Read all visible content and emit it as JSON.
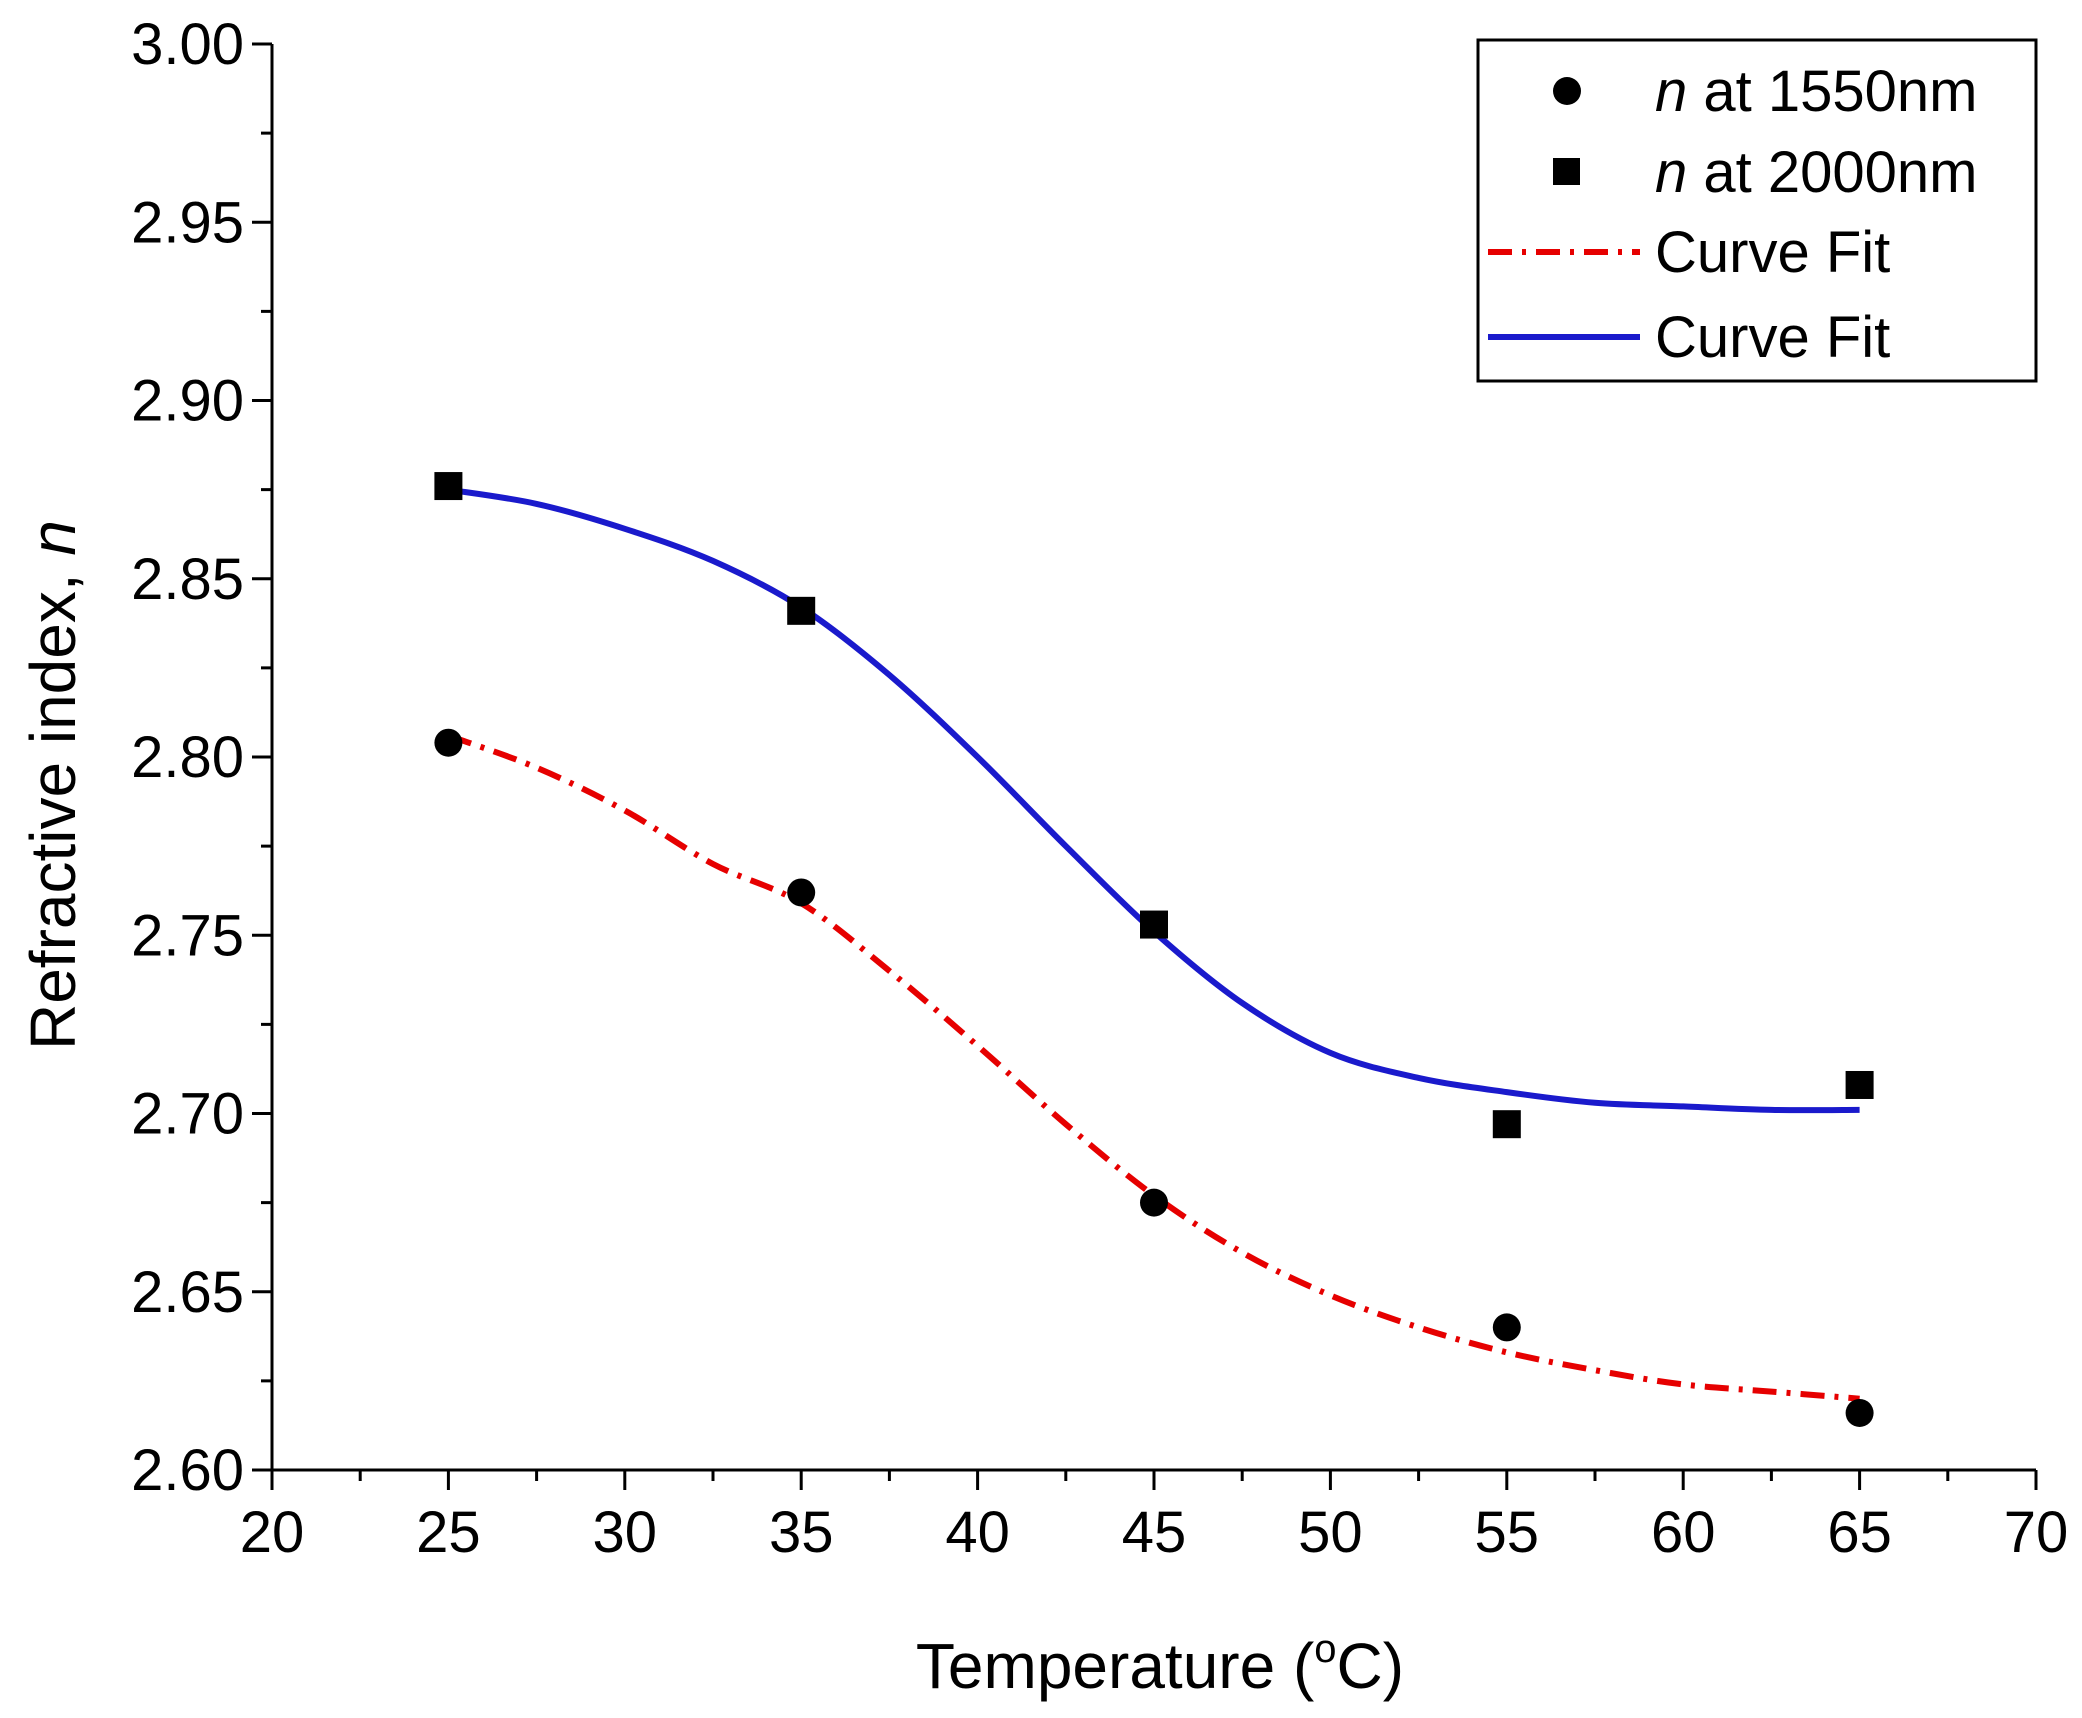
{
  "chart_data": {
    "type": "scatter",
    "title": "",
    "xlabel": "Temperature (°C)",
    "xlabel_parts": {
      "main": "Temperature (",
      "sup": "o",
      "unit": "C)"
    },
    "ylabel": "Refractive index, n",
    "ylabel_parts": {
      "main": "Refractive index, ",
      "var": "n"
    },
    "xlim": [
      20,
      70
    ],
    "ylim": [
      2.6,
      3.0
    ],
    "x_ticks": [
      "20",
      "25",
      "30",
      "35",
      "40",
      "45",
      "50",
      "55",
      "60",
      "65",
      "70"
    ],
    "y_ticks": [
      "2.60",
      "2.65",
      "2.70",
      "2.75",
      "2.80",
      "2.85",
      "2.90",
      "2.95",
      "3.00"
    ],
    "grid": false,
    "legend_position": "top-right",
    "series": [
      {
        "name": "n at 1550nm",
        "label_var": "n",
        "label_rest": " at 1550nm",
        "marker": "circle",
        "color": "#000000",
        "x": [
          25,
          35,
          45,
          55,
          65
        ],
        "y": [
          2.804,
          2.762,
          2.675,
          2.64,
          2.616
        ]
      },
      {
        "name": "n at 2000nm",
        "label_var": "n",
        "label_rest": " at 2000nm",
        "marker": "square",
        "color": "#000000",
        "x": [
          25,
          35,
          45,
          55,
          65
        ],
        "y": [
          2.876,
          2.841,
          2.753,
          2.697,
          2.708
        ]
      }
    ],
    "fits": [
      {
        "name": "Curve Fit",
        "fits_series": "n at 1550nm",
        "style": "dash-dot",
        "color": "#e60000",
        "x": [
          25,
          27.5,
          30,
          32.5,
          35,
          37.5,
          40,
          42.5,
          45,
          47.5,
          50,
          52.5,
          55,
          57.5,
          60,
          62.5,
          65
        ],
        "y": [
          2.806,
          2.797,
          2.785,
          2.77,
          2.759,
          2.74,
          2.719,
          2.697,
          2.677,
          2.661,
          2.649,
          2.64,
          2.633,
          2.628,
          2.624,
          2.622,
          2.62
        ]
      },
      {
        "name": "Curve Fit",
        "fits_series": "n at 2000nm",
        "style": "solid",
        "color": "#1a1acc",
        "x": [
          25,
          27.5,
          30,
          32.5,
          35,
          37.5,
          40,
          42.5,
          45,
          47.5,
          50,
          52.5,
          55,
          57.5,
          60,
          62.5,
          65
        ],
        "y": [
          2.875,
          2.871,
          2.864,
          2.855,
          2.842,
          2.823,
          2.8,
          2.775,
          2.751,
          2.731,
          2.717,
          2.71,
          2.706,
          2.703,
          2.702,
          2.701,
          2.701
        ]
      }
    ]
  }
}
